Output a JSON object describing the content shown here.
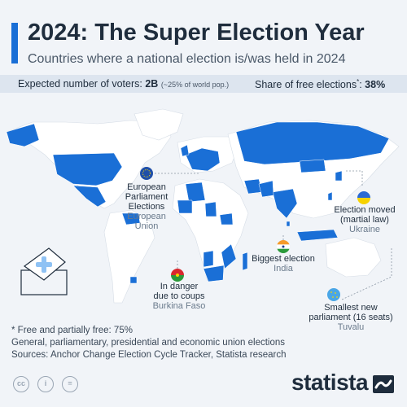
{
  "header": {
    "title": "2024: The Super Election Year",
    "subtitle": "Countries where a national election is/was held in 2024"
  },
  "stats": {
    "voters_label": "Expected number of voters:",
    "voters_value": "2B",
    "voters_note": "(~25% of world pop.)",
    "free_label": "Share of free elections",
    "free_marker": "*",
    "free_colon": ":",
    "free_value": "38%"
  },
  "annotations": {
    "eu": {
      "title_lines": [
        "European",
        "Parliament",
        "Elections"
      ],
      "subtitle_lines": [
        "European",
        "Union"
      ]
    },
    "ukraine": {
      "title_lines": [
        "Election moved",
        "(martial law)"
      ],
      "subtitle": "Ukraine"
    },
    "india": {
      "title": "Biggest election",
      "subtitle": "India"
    },
    "burkina": {
      "title_lines": [
        "In danger",
        "due to coups"
      ],
      "subtitle": "Burkina Faso"
    },
    "tuvalu": {
      "title_lines": [
        "Smallest new",
        "parliament (16 seats)"
      ],
      "subtitle": "Tuvalu"
    }
  },
  "footer": {
    "note": "* Free and partially free: 75%",
    "line2": "General, parliamentary, presidential and economic union elections",
    "sources": "Sources: Anchor Change Election Cycle Tracker, Statista research"
  },
  "branding": {
    "logo_text": "statista",
    "license_icons": [
      "cc",
      "i",
      "="
    ]
  },
  "colors": {
    "election": "#1a6fd6",
    "no_election": "#ffffff",
    "background": "#f1f4f8",
    "title_accent": "#1a6fd6"
  },
  "icons": [
    "ballot-box-icon",
    "eu-flag-icon",
    "ukraine-flag-icon",
    "india-flag-icon",
    "burkina-flag-icon",
    "tuvalu-flag-icon",
    "creative-commons-icon",
    "attribution-icon",
    "no-derivatives-icon",
    "statista-logo-icon"
  ]
}
